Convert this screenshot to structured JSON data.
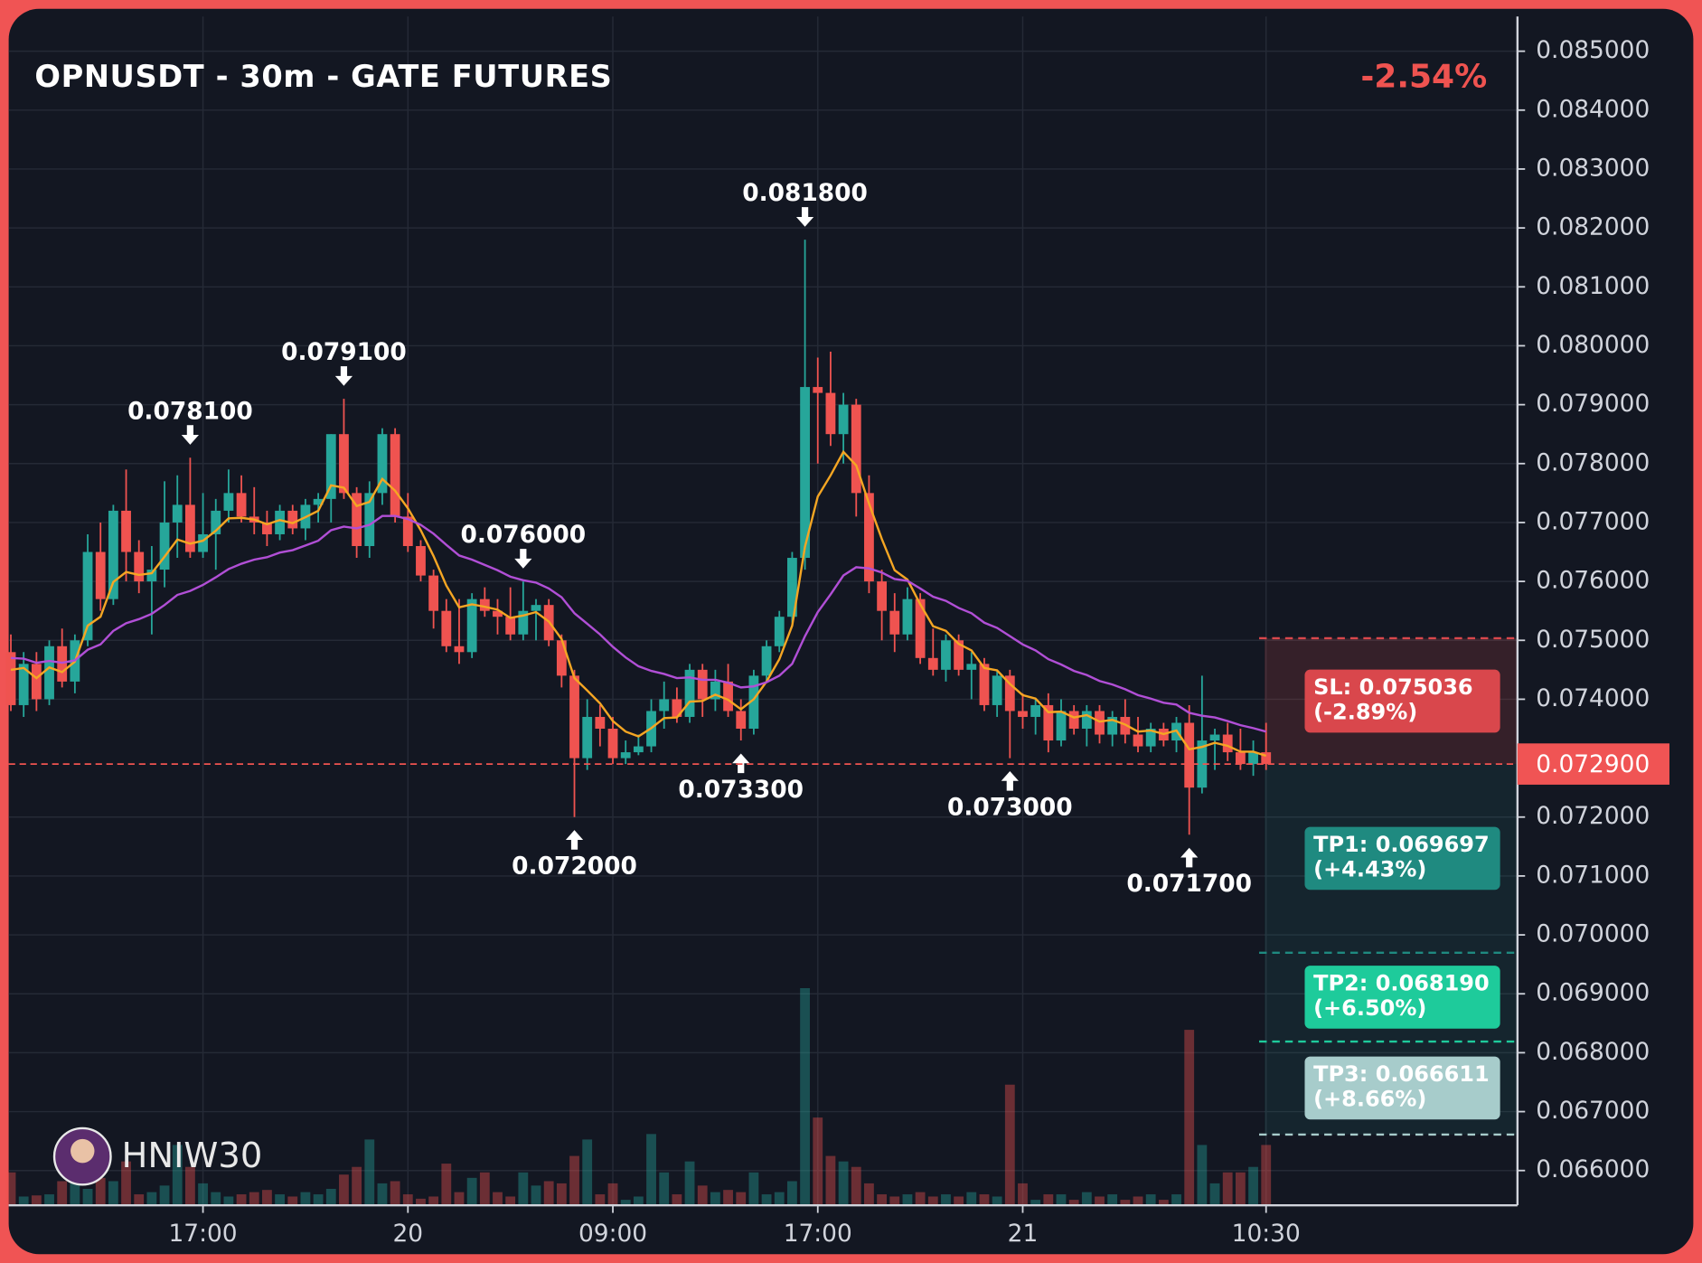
{
  "chart_data": {
    "type": "candlestick",
    "title": "OPNUSDT - 30m - GATE FUTURES",
    "change_label": "-2.54%",
    "watermark": "HNIW30",
    "categories": [
      null,
      null,
      null,
      null,
      null,
      null,
      null,
      null,
      null,
      null,
      null,
      null,
      null,
      null,
      null,
      "17:00",
      null,
      null,
      null,
      null,
      null,
      null,
      null,
      null,
      null,
      null,
      null,
      null,
      null,
      null,
      null,
      "20",
      null,
      null,
      null,
      null,
      null,
      null,
      null,
      null,
      null,
      null,
      null,
      null,
      null,
      null,
      null,
      "09:00",
      null,
      null,
      null,
      null,
      null,
      null,
      null,
      null,
      null,
      null,
      null,
      null,
      null,
      null,
      null,
      "17:00",
      null,
      null,
      null,
      null,
      null,
      null,
      null,
      null,
      null,
      null,
      null,
      null,
      null,
      null,
      null,
      "21",
      null,
      null,
      null,
      null,
      null,
      null,
      null,
      null,
      null,
      null,
      null,
      null,
      null,
      null,
      null,
      null,
      null,
      null,
      "10:30"
    ],
    "open": [
      0.0748,
      0.0739,
      0.0746,
      0.074,
      0.0749,
      0.0743,
      0.075,
      0.0765,
      0.0757,
      0.0772,
      0.0765,
      0.076,
      0.0762,
      0.077,
      0.0773,
      0.0765,
      0.0768,
      0.0772,
      0.0775,
      0.0771,
      0.077,
      0.0768,
      0.0772,
      0.0769,
      0.0773,
      0.0774,
      0.0785,
      0.0775,
      0.0766,
      0.0775,
      0.0785,
      0.0771,
      0.0766,
      0.0761,
      0.0755,
      0.0749,
      0.0748,
      0.0757,
      0.0755,
      0.0754,
      0.0751,
      0.0755,
      0.0756,
      0.075,
      0.0744,
      0.073,
      0.0737,
      0.0735,
      0.073,
      0.0731,
      0.0732,
      0.0738,
      0.074,
      0.0737,
      0.0745,
      0.074,
      0.0743,
      0.0738,
      0.0735,
      0.0744,
      0.0749,
      0.0754,
      0.0764,
      0.0793,
      0.0792,
      0.0785,
      0.079,
      0.0775,
      0.076,
      0.0755,
      0.0751,
      0.0757,
      0.0747,
      0.0745,
      0.075,
      0.0745,
      0.0746,
      0.0739,
      0.0744,
      0.0738,
      0.0737,
      0.0739,
      0.0733,
      0.0738,
      0.0735,
      0.0738,
      0.0734,
      0.0737,
      0.0734,
      0.0732,
      0.0735,
      0.0733,
      0.0736,
      0.0725,
      0.0733,
      0.0734,
      0.0731,
      0.0729,
      0.0731
    ],
    "high": [
      0.0751,
      0.0748,
      0.0748,
      0.075,
      0.0752,
      0.0751,
      0.0768,
      0.077,
      0.0773,
      0.0779,
      0.0767,
      0.0766,
      0.0777,
      0.0778,
      0.0781,
      0.0775,
      0.0774,
      0.0779,
      0.0778,
      0.0776,
      0.0772,
      0.0773,
      0.0773,
      0.0774,
      0.0775,
      0.0785,
      0.0791,
      0.0776,
      0.0777,
      0.0786,
      0.0786,
      0.0775,
      0.0767,
      0.0762,
      0.0757,
      0.0757,
      0.0758,
      0.0759,
      0.0757,
      0.0759,
      0.076,
      0.0757,
      0.0757,
      0.0751,
      0.0745,
      0.074,
      0.0739,
      0.0737,
      0.0733,
      0.0734,
      0.074,
      0.0743,
      0.0742,
      0.0746,
      0.0746,
      0.0745,
      0.0746,
      0.074,
      0.0745,
      0.075,
      0.0755,
      0.0765,
      0.0818,
      0.0798,
      0.0799,
      0.0792,
      0.0791,
      0.0778,
      0.0762,
      0.0758,
      0.0759,
      0.0758,
      0.0752,
      0.0751,
      0.0751,
      0.0748,
      0.0747,
      0.0745,
      0.0745,
      0.0741,
      0.074,
      0.0741,
      0.074,
      0.0739,
      0.0739,
      0.0739,
      0.0738,
      0.074,
      0.0737,
      0.0736,
      0.0736,
      0.0737,
      0.0739,
      0.0744,
      0.0735,
      0.0736,
      0.0735,
      0.0733,
      0.0736
    ],
    "low": [
      0.0738,
      0.0737,
      0.0738,
      0.0739,
      0.0742,
      0.0741,
      0.0749,
      0.0755,
      0.0756,
      0.076,
      0.0758,
      0.0751,
      0.0759,
      0.0764,
      0.0764,
      0.0764,
      0.0762,
      0.077,
      0.077,
      0.0768,
      0.0766,
      0.0767,
      0.0768,
      0.0767,
      0.077,
      0.077,
      0.0774,
      0.0764,
      0.0764,
      0.0773,
      0.077,
      0.0765,
      0.076,
      0.0752,
      0.0748,
      0.0746,
      0.0747,
      0.0754,
      0.0751,
      0.075,
      0.075,
      0.075,
      0.0749,
      0.0742,
      0.072,
      0.0728,
      0.0732,
      0.0729,
      0.0729,
      0.07305,
      0.0731,
      0.0735,
      0.0736,
      0.0736,
      0.0737,
      0.0738,
      0.0737,
      0.0733,
      0.0734,
      0.0743,
      0.0748,
      0.0753,
      0.0762,
      0.078,
      0.0783,
      0.078,
      0.0771,
      0.0758,
      0.075,
      0.0748,
      0.075,
      0.0746,
      0.0744,
      0.0743,
      0.0744,
      0.074,
      0.0738,
      0.0737,
      0.073,
      0.0735,
      0.0734,
      0.0731,
      0.0732,
      0.0734,
      0.0732,
      0.07325,
      0.0732,
      0.07325,
      0.0731,
      0.0731,
      0.0732,
      0.0731,
      0.0717,
      0.0724,
      0.0728,
      0.07295,
      0.0728,
      0.0727,
      0.0728
    ],
    "close": [
      0.0739,
      0.0746,
      0.074,
      0.0749,
      0.0743,
      0.075,
      0.0765,
      0.0757,
      0.0772,
      0.0765,
      0.076,
      0.0762,
      0.077,
      0.0773,
      0.0765,
      0.0768,
      0.0772,
      0.0775,
      0.0771,
      0.077,
      0.0768,
      0.0772,
      0.0769,
      0.0773,
      0.0774,
      0.0785,
      0.0775,
      0.0766,
      0.0775,
      0.0785,
      0.0771,
      0.0766,
      0.0761,
      0.0755,
      0.0749,
      0.0748,
      0.0757,
      0.0755,
      0.0754,
      0.0751,
      0.0755,
      0.0756,
      0.075,
      0.0744,
      0.073,
      0.0737,
      0.0735,
      0.073,
      0.0731,
      0.0732,
      0.0738,
      0.074,
      0.0737,
      0.0745,
      0.074,
      0.0743,
      0.0738,
      0.0735,
      0.0744,
      0.0749,
      0.0754,
      0.0764,
      0.0793,
      0.0792,
      0.0785,
      0.079,
      0.0775,
      0.076,
      0.0755,
      0.0751,
      0.0757,
      0.0747,
      0.0745,
      0.075,
      0.0745,
      0.0746,
      0.0739,
      0.0744,
      0.0738,
      0.0737,
      0.0739,
      0.0733,
      0.0738,
      0.0735,
      0.0738,
      0.0734,
      0.0737,
      0.0734,
      0.0732,
      0.0735,
      0.0733,
      0.0736,
      0.0725,
      0.0733,
      0.0734,
      0.0731,
      0.0729,
      0.0731,
      0.0729
    ],
    "volume": [
      30,
      8,
      9,
      10,
      22,
      20,
      15,
      25,
      22,
      40,
      10,
      12,
      18,
      55,
      35,
      20,
      12,
      8,
      10,
      12,
      14,
      10,
      8,
      12,
      10,
      15,
      28,
      35,
      60,
      20,
      22,
      10,
      6,
      8,
      38,
      12,
      25,
      30,
      12,
      8,
      30,
      18,
      22,
      20,
      45,
      60,
      10,
      20,
      5,
      8,
      65,
      30,
      10,
      40,
      18,
      12,
      14,
      12,
      30,
      10,
      12,
      22,
      198,
      80,
      45,
      40,
      35,
      20,
      10,
      8,
      10,
      12,
      8,
      10,
      8,
      12,
      10,
      8,
      110,
      20,
      5,
      10,
      10,
      5,
      12,
      8,
      10,
      5,
      8,
      10,
      5,
      10,
      160,
      55,
      20,
      30,
      30,
      35,
      55
    ],
    "up_color": "#26a69a",
    "down_color": "#ef5350",
    "lines": [
      {
        "color": "#f5a623",
        "values": [
          0.0745,
          0.07453,
          0.07436,
          0.07454,
          0.07446,
          0.07464,
          0.07525,
          0.0754,
          0.07599,
          0.07616,
          0.07611,
          0.07614,
          0.07642,
          0.07671,
          0.07664,
          0.07669,
          0.07686,
          0.07707,
          0.07708,
          0.07705,
          0.07697,
          0.07704,
          0.07699,
          0.07709,
          0.0772,
          0.07763,
          0.07759,
          0.07728,
          0.07735,
          0.07774,
          0.07754,
          0.07724,
          0.07687,
          0.07643,
          0.07593,
          0.07556,
          0.07561,
          0.07557,
          0.07552,
          0.07538,
          0.07542,
          0.07548,
          0.07532,
          0.07502,
          0.07436,
          0.07415,
          0.07393,
          0.07363,
          0.07345,
          0.07337,
          0.07351,
          0.07368,
          0.07369,
          0.07396,
          0.07397,
          0.07408,
          0.07399,
          0.07383,
          0.074,
          0.0743,
          0.07468,
          0.07525,
          0.07659,
          0.07744,
          0.0778,
          0.0782,
          0.07797,
          0.07732,
          0.07672,
          0.07619,
          0.07603,
          0.07561,
          0.07524,
          0.07516,
          0.07494,
          0.07483,
          0.07453,
          0.07449,
          0.07426,
          0.07407,
          0.07401,
          0.07378,
          0.07379,
          0.07369,
          0.07373,
          0.07362,
          0.07365,
          0.07357,
          0.07345,
          0.07347,
          0.07341,
          0.07347,
          0.07315,
          0.07319,
          0.07326,
          0.07321,
          0.07311,
          0.07311,
          0.07304
        ]
      },
      {
        "color": "#b14fd6",
        "values": [
          0.0747,
          0.07469,
          0.07462,
          0.07465,
          0.07462,
          0.07466,
          0.07484,
          0.07493,
          0.07516,
          0.07529,
          0.07536,
          0.07545,
          0.0756,
          0.07577,
          0.07584,
          0.07594,
          0.07607,
          0.07621,
          0.0763,
          0.07637,
          0.07641,
          0.07649,
          0.07653,
          0.07661,
          0.07669,
          0.07687,
          0.07693,
          0.0769,
          0.07696,
          0.07711,
          0.07711,
          0.07706,
          0.07696,
          0.07681,
          0.07662,
          0.07644,
          0.07637,
          0.07628,
          0.07619,
          0.07608,
          0.07602,
          0.07598,
          0.07588,
          0.07573,
          0.07546,
          0.07528,
          0.0751,
          0.07489,
          0.07471,
          0.07456,
          0.07448,
          0.07443,
          0.07436,
          0.07437,
          0.07433,
          0.07433,
          0.07428,
          0.0742,
          0.07422,
          0.07429,
          0.0744,
          0.0746,
          0.07507,
          0.07548,
          0.07578,
          0.0761,
          0.07624,
          0.07622,
          0.07615,
          0.07604,
          0.07601,
          0.07588,
          0.07574,
          0.07567,
          0.07555,
          0.07546,
          0.0753,
          0.07521,
          0.07507,
          0.07493,
          0.07483,
          0.07468,
          0.07459,
          0.07448,
          0.07441,
          0.07431,
          0.07425,
          0.07417,
          0.07407,
          0.07401,
          0.07394,
          0.07391,
          0.07377,
          0.07372,
          0.07369,
          0.07363,
          0.07356,
          0.07351,
          0.07345
        ]
      }
    ],
    "annotations": [
      {
        "value": 0.0781,
        "label": "0.078100",
        "side": "high"
      },
      {
        "value": 0.0791,
        "label": "0.079100",
        "side": "high"
      },
      {
        "value": 0.076,
        "label": "0.076000",
        "side": "high"
      },
      {
        "value": 0.0818,
        "label": "0.081800",
        "side": "high"
      },
      {
        "value": 0.072,
        "label": "0.072000",
        "side": "low"
      },
      {
        "value": 0.0733,
        "label": "0.073300",
        "side": "low"
      },
      {
        "value": 0.073,
        "label": "0.073000",
        "side": "low"
      },
      {
        "value": 0.0717,
        "label": "0.071700",
        "side": "low"
      }
    ],
    "current_price": {
      "value": 0.0729,
      "label": "0.072900"
    },
    "levels": [
      {
        "value": 0.075036,
        "label": "SL: 0.075036",
        "change": "(-2.89%)",
        "color": "#d9474c"
      },
      {
        "value": 0.069697,
        "label": "TP1: 0.069697",
        "change": "(+4.43%)",
        "color": "#1f8a80"
      },
      {
        "value": 0.06819,
        "label": "TP2: 0.068190",
        "change": "(+6.50%)",
        "color": "#1ecb9b"
      },
      {
        "value": 0.066611,
        "label": "TP3: 0.066611",
        "change": "(+8.66%)",
        "color": "#a7cccb"
      }
    ],
    "ylim": [
      0.06541,
      0.08559
    ],
    "yticks": [
      {
        "value": 0.085,
        "label": "0.085000"
      },
      {
        "value": 0.084,
        "label": "0.084000"
      },
      {
        "value": 0.083,
        "label": "0.083000"
      },
      {
        "value": 0.082,
        "label": "0.082000"
      },
      {
        "value": 0.081,
        "label": "0.081000"
      },
      {
        "value": 0.08,
        "label": "0.080000"
      },
      {
        "value": 0.079,
        "label": "0.079000"
      },
      {
        "value": 0.078,
        "label": "0.078000"
      },
      {
        "value": 0.077,
        "label": "0.077000"
      },
      {
        "value": 0.076,
        "label": "0.076000"
      },
      {
        "value": 0.075,
        "label": "0.075000"
      },
      {
        "value": 0.074,
        "label": "0.074000"
      },
      {
        "value": 0.072,
        "label": "0.072000"
      },
      {
        "value": 0.071,
        "label": "0.071000"
      },
      {
        "value": 0.07,
        "label": "0.070000"
      },
      {
        "value": 0.069,
        "label": "0.069000"
      },
      {
        "value": 0.068,
        "label": "0.068000"
      },
      {
        "value": 0.067,
        "label": "0.067000"
      },
      {
        "value": 0.066,
        "label": "0.066000"
      }
    ],
    "grid": true
  }
}
